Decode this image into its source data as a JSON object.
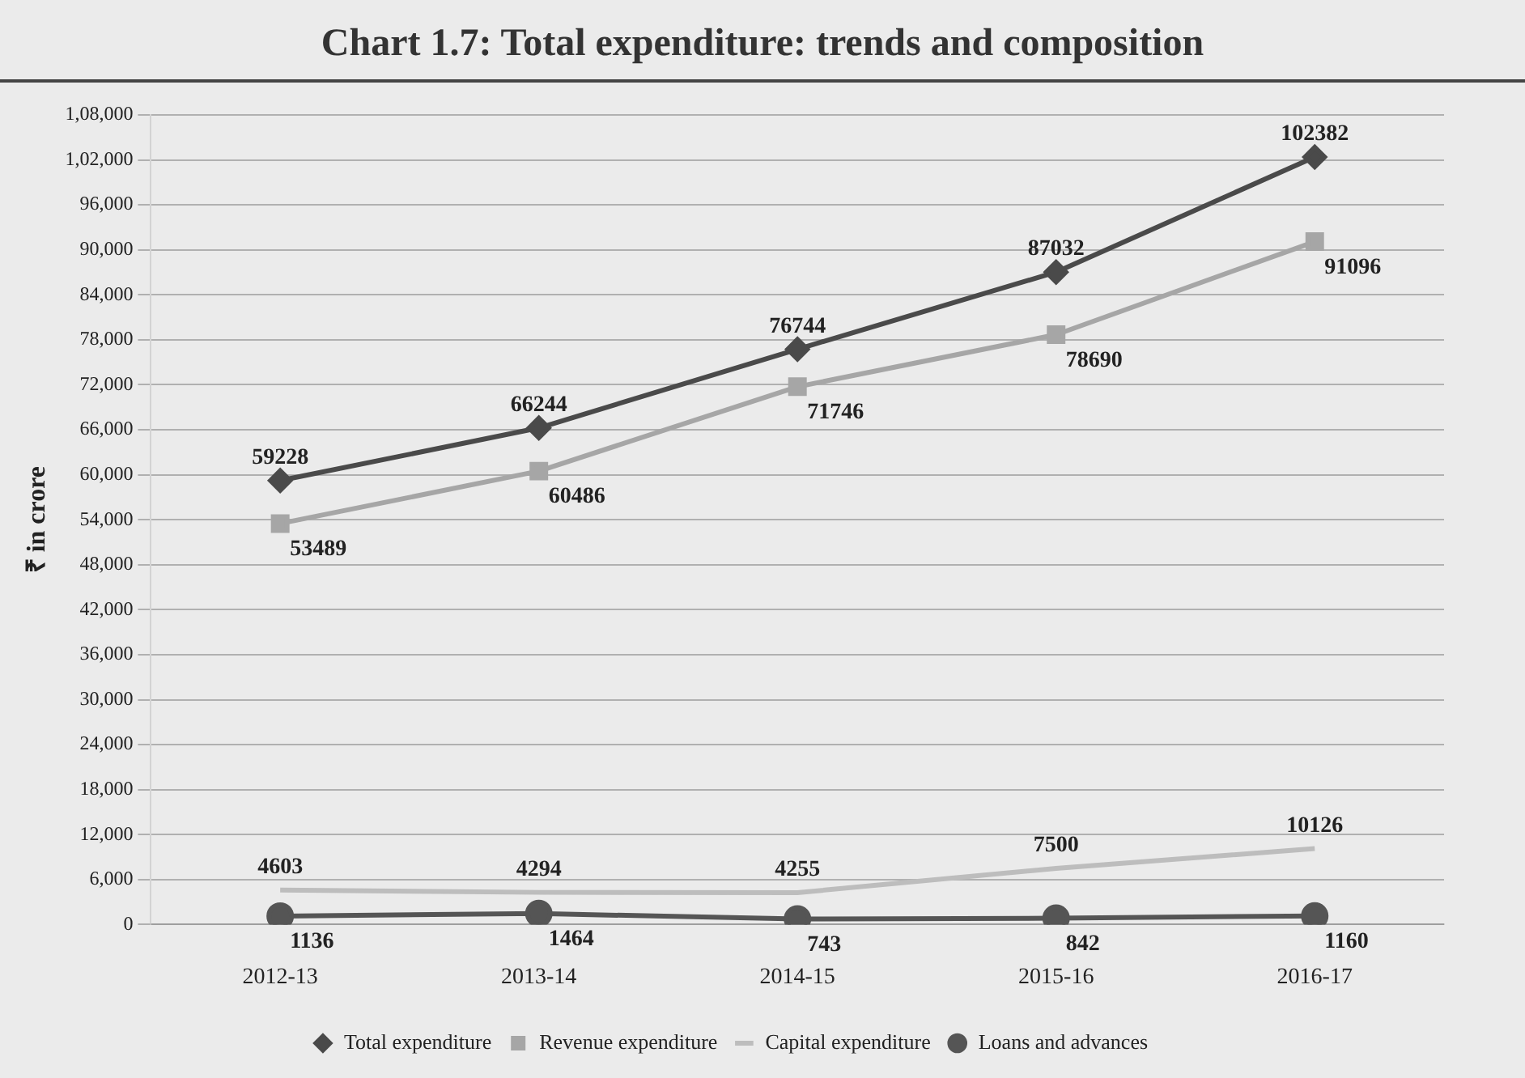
{
  "chart_data": {
    "type": "line",
    "title": "Chart 1.7: Total expenditure: trends and composition",
    "ylabel": "₹ in crore",
    "categories": [
      "2012-13",
      "2013-14",
      "2014-15",
      "2015-16",
      "2016-17"
    ],
    "series": [
      {
        "name": "Total expenditure",
        "color": "#4a4a4a",
        "marker": "diamond",
        "values": [
          59228,
          66244,
          76744,
          87032,
          102382
        ]
      },
      {
        "name": "Revenue expenditure",
        "color": "#a6a6a6",
        "marker": "square",
        "values": [
          53489,
          60486,
          71746,
          78690,
          91096
        ]
      },
      {
        "name": "Capital expenditure",
        "color": "#bdbdbd",
        "marker": "none",
        "values": [
          4603,
          4294,
          4255,
          7500,
          10126
        ]
      },
      {
        "name": "Loans and advances",
        "color": "#555555",
        "marker": "circle",
        "values": [
          1136,
          1464,
          743,
          842,
          1160
        ]
      }
    ],
    "ylim": [
      0,
      108000
    ],
    "yticks": [
      {
        "value": 0,
        "label": "0"
      },
      {
        "value": 6000,
        "label": "6,000"
      },
      {
        "value": 12000,
        "label": "12,000"
      },
      {
        "value": 18000,
        "label": "18,000"
      },
      {
        "value": 24000,
        "label": "24,000"
      },
      {
        "value": 30000,
        "label": "30,000"
      },
      {
        "value": 36000,
        "label": "36,000"
      },
      {
        "value": 42000,
        "label": "42,000"
      },
      {
        "value": 48000,
        "label": "48,000"
      },
      {
        "value": 54000,
        "label": "54,000"
      },
      {
        "value": 60000,
        "label": "60,000"
      },
      {
        "value": 66000,
        "label": "66,000"
      },
      {
        "value": 72000,
        "label": "72,000"
      },
      {
        "value": 78000,
        "label": "78,000"
      },
      {
        "value": 84000,
        "label": "84,000"
      },
      {
        "value": 90000,
        "label": "90,000"
      },
      {
        "value": 96000,
        "label": "96,000"
      },
      {
        "value": 102000,
        "label": "1,02,000"
      },
      {
        "value": 108000,
        "label": "1,08,000"
      }
    ],
    "grid": "y",
    "legend": "bottom",
    "data_labels": true
  }
}
